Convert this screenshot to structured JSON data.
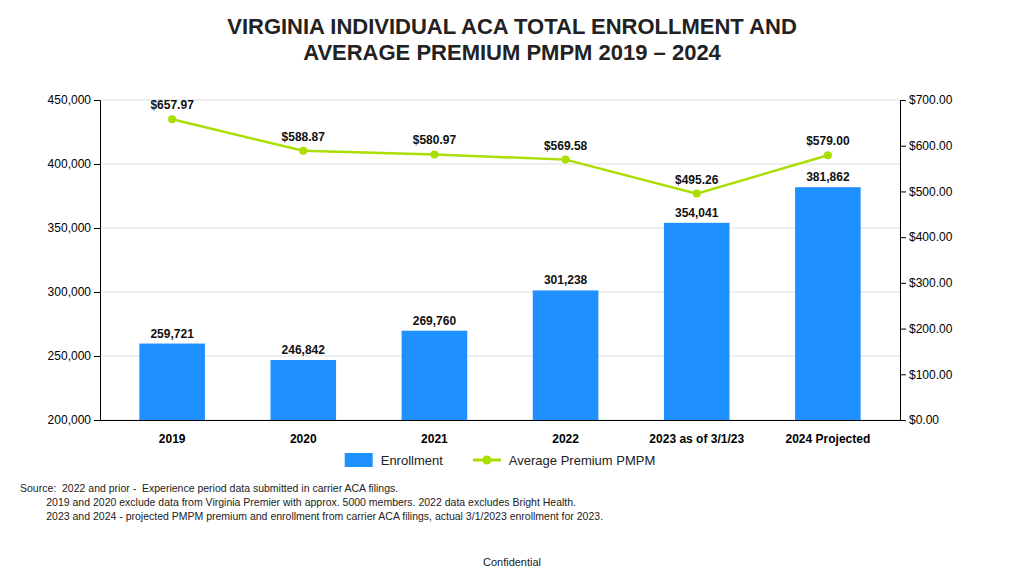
{
  "chart_data": {
    "type": "bar",
    "title": "VIRGINIA INDIVIDUAL ACA TOTAL ENROLLMENT AND\nAVERAGE PREMIUM PMPM 2019 – 2024",
    "categories": [
      "2019",
      "2020",
      "2021",
      "2022",
      "2023 as of 3/1/23",
      "2024 Projected"
    ],
    "series": [
      {
        "name": "Enrollment",
        "type": "bar",
        "color": "#1E90FF",
        "values": [
          259721,
          246842,
          269760,
          301238,
          354041,
          381862
        ],
        "value_labels": [
          "259,721",
          "246,842",
          "269,760",
          "301,238",
          "354,041",
          "381,862"
        ]
      },
      {
        "name": "Average Premium PMPM",
        "type": "line",
        "color": "#AADD00",
        "marker": "circle",
        "axis": "y2",
        "values": [
          657.97,
          588.87,
          580.97,
          569.58,
          495.26,
          579.0
        ],
        "value_labels": [
          "$657.97",
          "$588.87",
          "$580.97",
          "$569.58",
          "$495.26",
          "$579.00"
        ]
      }
    ],
    "ylim": [
      200000,
      450000
    ],
    "yticks": [
      {
        "value": 200000,
        "label": "200,000"
      },
      {
        "value": 250000,
        "label": "250,000"
      },
      {
        "value": 300000,
        "label": "300,000"
      },
      {
        "value": 350000,
        "label": "350,000"
      },
      {
        "value": 400000,
        "label": "400,000"
      },
      {
        "value": 450000,
        "label": "450,000"
      }
    ],
    "y2lim": [
      0,
      700
    ],
    "y2ticks": [
      {
        "value": 0,
        "label": "$0.00"
      },
      {
        "value": 100,
        "label": "$100.00"
      },
      {
        "value": 200,
        "label": "$200.00"
      },
      {
        "value": 300,
        "label": "$300.00"
      },
      {
        "value": 400,
        "label": "$400.00"
      },
      {
        "value": 500,
        "label": "$500.00"
      },
      {
        "value": 600,
        "label": "$600.00"
      },
      {
        "value": 700,
        "label": "$700.00"
      }
    ],
    "grid": true,
    "legend": "bottom",
    "data_labels": true,
    "annotations": [
      "Source:  2022 and prior -  Experience period data submitted in carrier ACA filings.\n         2019 and 2020 exclude data from Virginia Premier with approx. 5000 members. 2022 data excludes Bright Health.\n         2023 and 2024 - projected PMPM premium and enrollment from carrier ACA filings, actual 3/1/2023 enrollment for 2023.",
      "Confidential"
    ]
  }
}
